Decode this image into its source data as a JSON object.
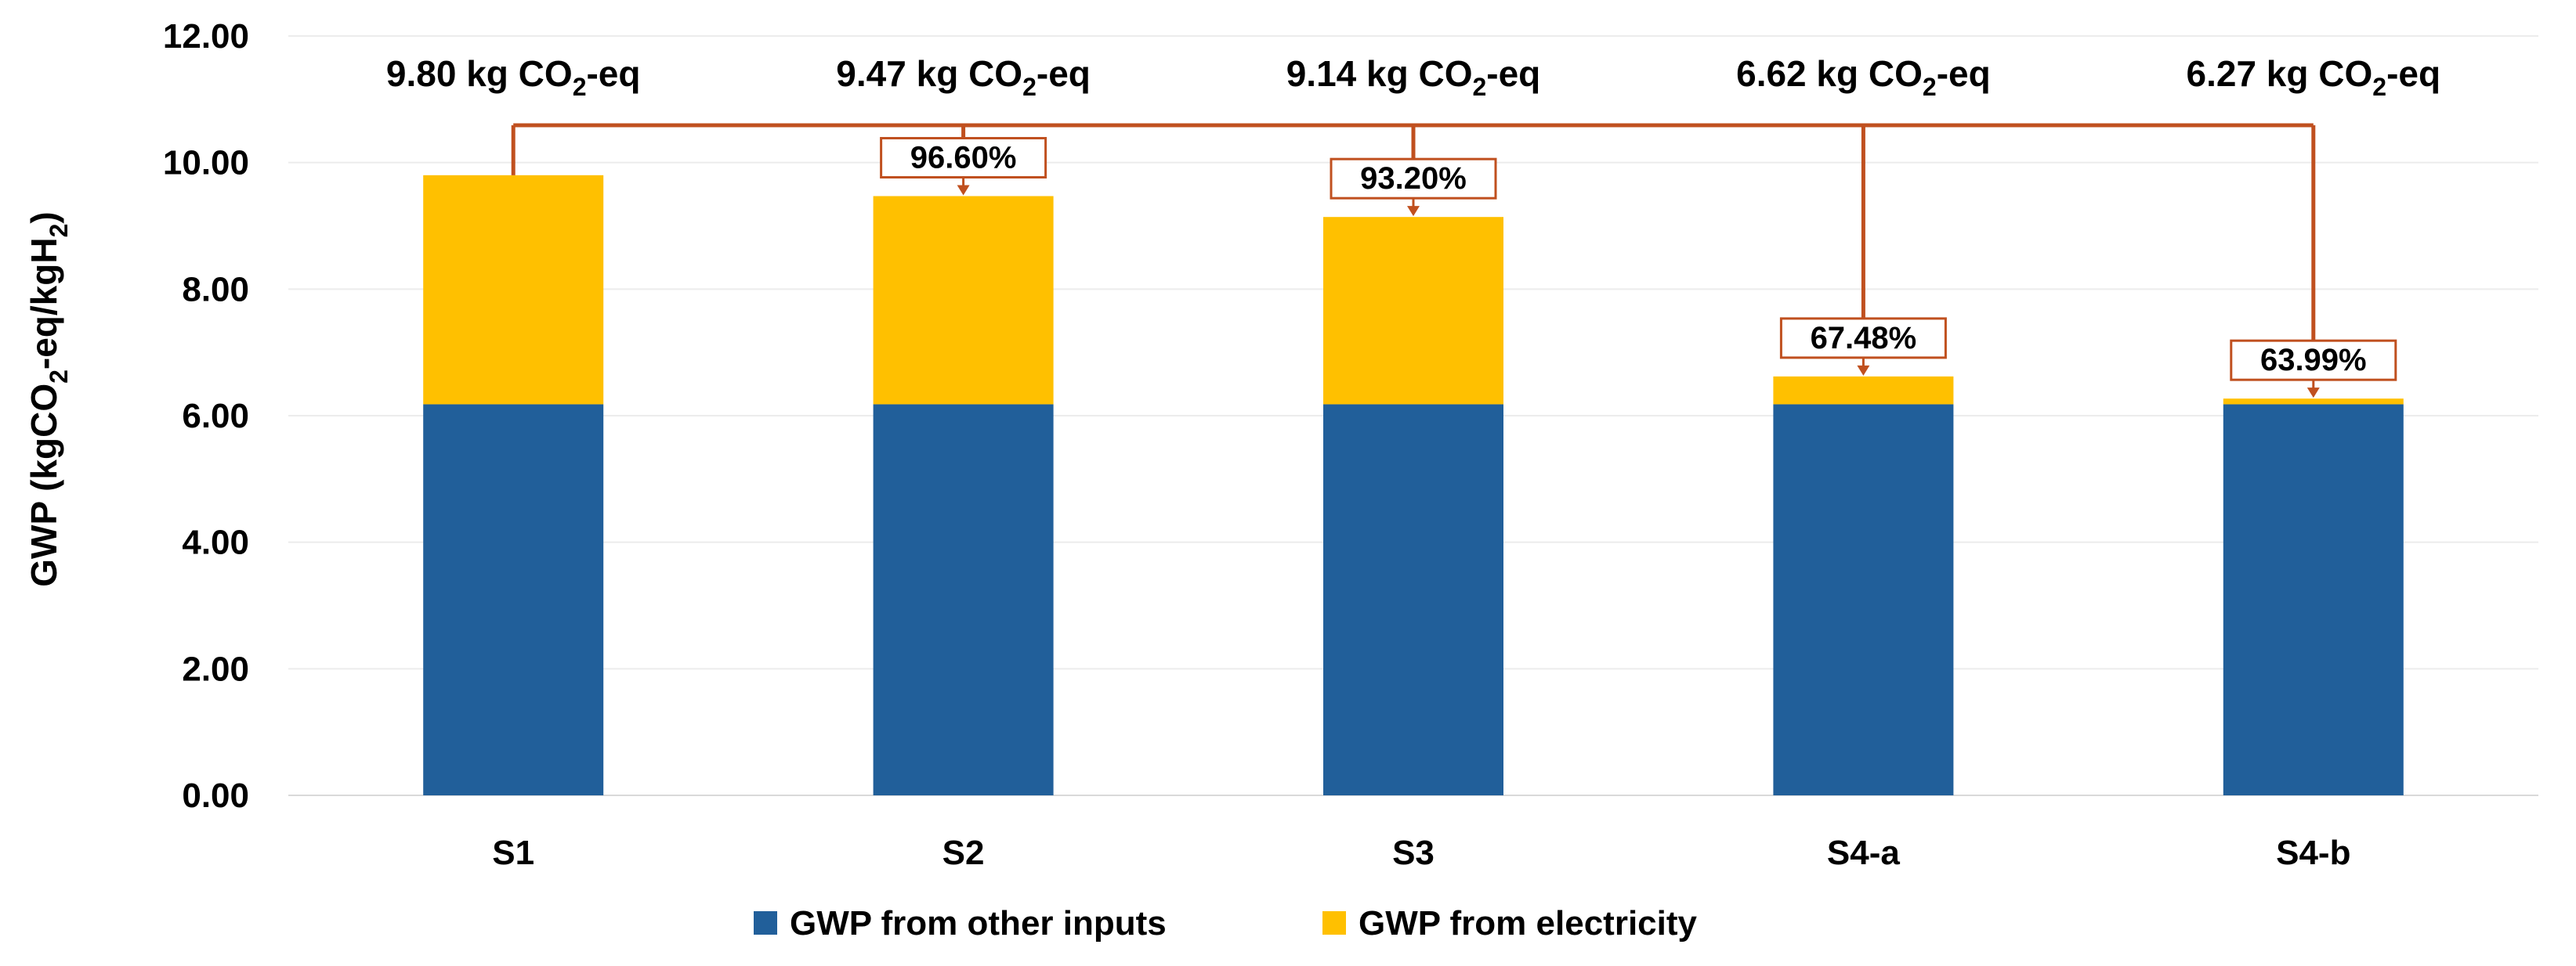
{
  "chart_data": {
    "type": "bar",
    "stacked": true,
    "categories": [
      "S1",
      "S2",
      "S3",
      "S4-a",
      "S4-b"
    ],
    "series": [
      {
        "name": "GWP from other inputs",
        "color": "#215F9A",
        "values": [
          6.18,
          6.18,
          6.18,
          6.18,
          6.18
        ]
      },
      {
        "name": "GWP from electricity",
        "color": "#FFC000",
        "values": [
          3.62,
          3.29,
          2.96,
          0.44,
          0.09
        ]
      }
    ],
    "totals": [
      {
        "value": "9.80",
        "unit": " kg CO",
        "sub": "2",
        "suffix": "-eq"
      },
      {
        "value": "9.47",
        "unit": " kg CO",
        "sub": "2",
        "suffix": "-eq"
      },
      {
        "value": "9.14",
        "unit": " kg CO",
        "sub": "2",
        "suffix": "-eq"
      },
      {
        "value": "6.62",
        "unit": " kg CO",
        "sub": "2",
        "suffix": "-eq"
      },
      {
        "value": "6.27",
        "unit": " kg CO",
        "sub": "2",
        "suffix": "-eq"
      }
    ],
    "relative_labels": [
      null,
      "96.60%",
      "93.20%",
      "67.48%",
      "63.99%"
    ],
    "ylabel": {
      "prefix": "GWP (kgCO",
      "sub1": "2",
      "middle": "-eq/kgH",
      "sub2": "2",
      "suffix": ")"
    },
    "ylim": [
      0,
      12
    ],
    "yticks": [
      "0.00",
      "2.00",
      "4.00",
      "6.00",
      "8.00",
      "10.00",
      "12.00"
    ],
    "grid": true,
    "legend_position": "bottom",
    "annotation_color": "#C0501F"
  }
}
